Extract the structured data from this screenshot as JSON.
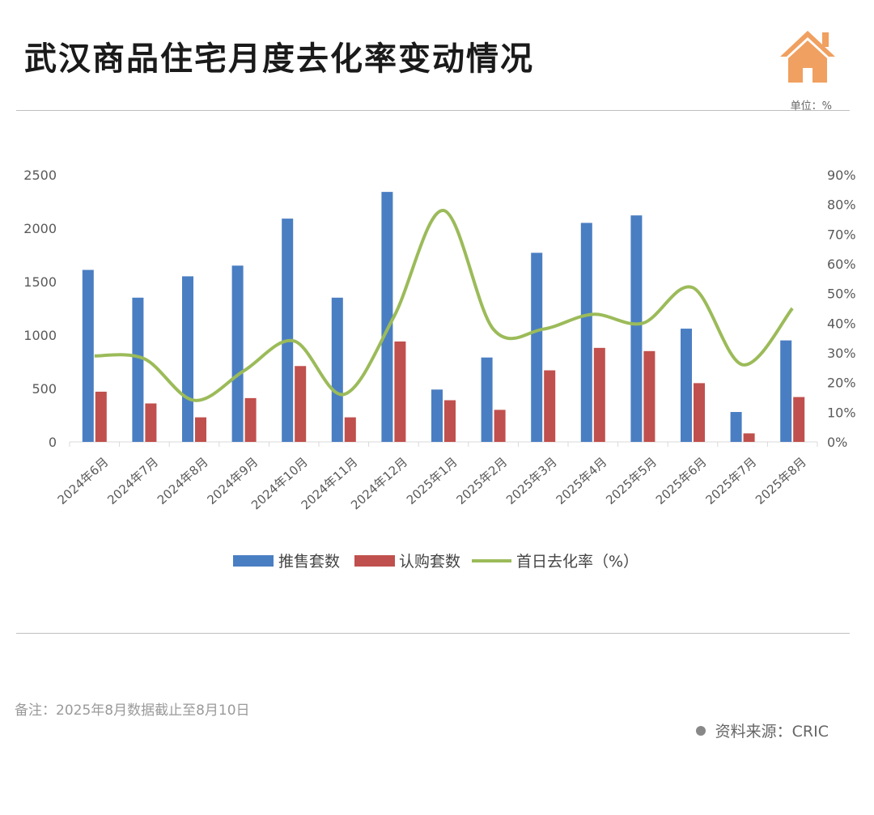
{
  "header": {
    "title": "武汉商品住宅月度去化率变动情况",
    "unit": "单位：%",
    "logo_icon": "house-icon"
  },
  "footer": {
    "note": "备注：2025年8月数据截止至8月10日",
    "source": "资料来源：CRIC"
  },
  "colors": {
    "supply": "#4a7ec2",
    "subscription": "#c0504d",
    "rate": "#9bbb59",
    "logo": "#f0a060"
  },
  "chart_data": {
    "type": "bar",
    "categories": [
      "2024年6月",
      "2024年7月",
      "2024年8月",
      "2024年9月",
      "2024年10月",
      "2024年11月",
      "2024年12月",
      "2025年1月",
      "2025年2月",
      "2025年3月",
      "2025年4月",
      "2025年5月",
      "2025年6月",
      "2025年7月",
      "2025年8月"
    ],
    "series": [
      {
        "name": "推售套数",
        "type": "bar",
        "axis": "left",
        "values": [
          1610,
          1350,
          1550,
          1650,
          2090,
          1350,
          2340,
          490,
          790,
          1770,
          2050,
          2120,
          1060,
          280,
          950
        ]
      },
      {
        "name": "认购套数",
        "type": "bar",
        "axis": "left",
        "values": [
          470,
          360,
          230,
          410,
          710,
          230,
          940,
          390,
          300,
          670,
          880,
          850,
          550,
          80,
          420
        ]
      },
      {
        "name": "首日去化率（%）",
        "type": "line",
        "axis": "right",
        "smooth": true,
        "values": [
          29,
          28,
          14,
          24,
          34,
          16,
          42,
          78,
          38,
          38,
          43,
          40,
          52,
          26,
          45
        ]
      }
    ],
    "y_left": {
      "min": 0,
      "max": 2500,
      "ticks": [
        "0",
        "500",
        "1000",
        "1500",
        "2000",
        "2500"
      ]
    },
    "y_right": {
      "min": 0,
      "max": 90,
      "ticks": [
        "0%",
        "10%",
        "20%",
        "30%",
        "40%",
        "50%",
        "60%",
        "70%",
        "80%",
        "90%"
      ]
    },
    "legend_position": "bottom",
    "grid": false
  }
}
